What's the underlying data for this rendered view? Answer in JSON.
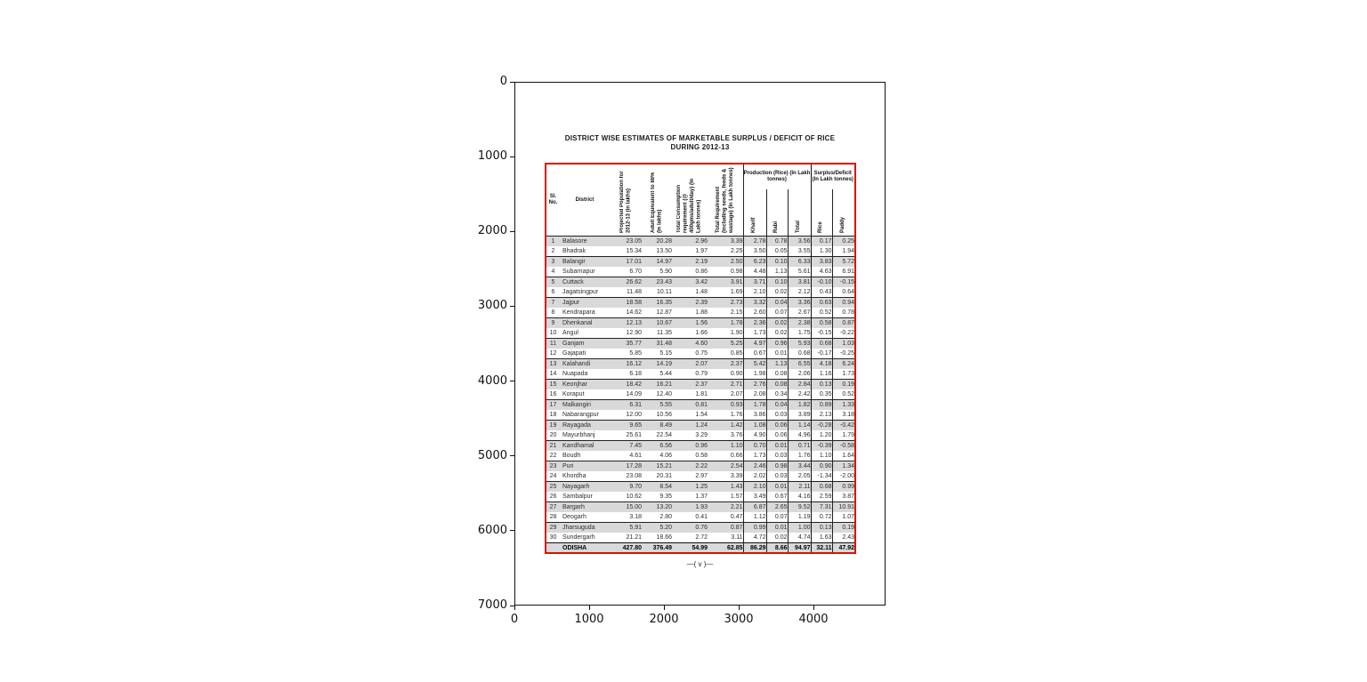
{
  "figure": {
    "y_ticks": [
      "0",
      "1000",
      "2000",
      "3000",
      "4000",
      "5000",
      "6000",
      "7000"
    ],
    "x_ticks": [
      "0",
      "1000",
      "2000",
      "3000",
      "4000"
    ]
  },
  "page": {
    "marker": "—( v )—",
    "table_border_color": "#dd1100",
    "row_shade_color": "#d9d9d9"
  },
  "chart_data": {
    "type": "table",
    "title": "DISTRICT WISE ESTIMATES OF MARKETABLE SURPLUS / DEFICIT OF RICE",
    "subtitle": "DURING 2012-13",
    "column_groups": {
      "production": "Production (Rice) (In Lakh tonnes)",
      "surplus": "Surplus/Deficit (In Lakh tonnes)"
    },
    "columns": [
      "Sl. No.",
      "District",
      "Projected Population for 2012-13 (in lakhs)",
      "Adult Equivalent to 88% (in lakhs)",
      "Total Consumption requirement (@ 400gms/adult/day) (In Lakh tonnes)",
      "Total Requirement (including seeds, feeds & wastage) (In Lakh tonnes)",
      "Kharif",
      "Rabi",
      "Total",
      "Rice",
      "Paddy"
    ],
    "rows": [
      [
        "1",
        "Balasore",
        "23.05",
        "20.28",
        "2.96",
        "3.39",
        "2.78",
        "0.78",
        "3.56",
        "0.17",
        "0.25"
      ],
      [
        "2",
        "Bhadrak",
        "15.34",
        "13.50",
        "1.97",
        "2.25",
        "3.50",
        "0.05",
        "3.55",
        "1.30",
        "1.94"
      ],
      [
        "3",
        "Balangir",
        "17.01",
        "14.97",
        "2.19",
        "2.50",
        "6.23",
        "0.10",
        "6.33",
        "3.83",
        "5.72"
      ],
      [
        "4",
        "Subarnapur",
        "6.70",
        "5.90",
        "0.86",
        "0.98",
        "4.48",
        "1.13",
        "5.61",
        "4.63",
        "6.91"
      ],
      [
        "5",
        "Cuttack",
        "26.62",
        "23.43",
        "3.42",
        "3.91",
        "3.71",
        "0.10",
        "3.81",
        "-0.10",
        "-0.15"
      ],
      [
        "6",
        "Jagatsingpur",
        "11.48",
        "10.11",
        "1.48",
        "1.69",
        "2.10",
        "0.02",
        "2.12",
        "0.43",
        "0.64"
      ],
      [
        "7",
        "Jajpur",
        "18.58",
        "16.35",
        "2.39",
        "2.73",
        "3.32",
        "0.04",
        "3.36",
        "0.63",
        "0.94"
      ],
      [
        "8",
        "Kendrapara",
        "14.62",
        "12.87",
        "1.88",
        "2.15",
        "2.60",
        "0.07",
        "2.67",
        "0.52",
        "0.78"
      ],
      [
        "9",
        "Dhenkanal",
        "12.13",
        "10.67",
        "1.56",
        "1.78",
        "2.36",
        "0.02",
        "2.38",
        "0.58",
        "0.87"
      ],
      [
        "10",
        "Angul",
        "12.90",
        "11.35",
        "1.66",
        "1.90",
        "1.73",
        "0.02",
        "1.75",
        "-0.15",
        "-0.22"
      ],
      [
        "11",
        "Ganjam",
        "35.77",
        "31.48",
        "4.60",
        "5.25",
        "4.97",
        "0.96",
        "5.93",
        "0.68",
        "1.03"
      ],
      [
        "12",
        "Gajapati",
        "5.85",
        "5.15",
        "0.75",
        "0.85",
        "0.67",
        "0.01",
        "0.68",
        "-0.17",
        "-0.25"
      ],
      [
        "13",
        "Kalahandi",
        "16.12",
        "14.19",
        "2.07",
        "2.37",
        "5.42",
        "1.13",
        "6.55",
        "4.18",
        "6.24"
      ],
      [
        "14",
        "Nuapada",
        "6.18",
        "5.44",
        "0.79",
        "0.90",
        "1.98",
        "0.08",
        "2.06",
        "1.16",
        "1.73"
      ],
      [
        "15",
        "Keonjhar",
        "18.42",
        "16.21",
        "2.37",
        "2.71",
        "2.76",
        "0.08",
        "2.84",
        "0.13",
        "0.19"
      ],
      [
        "16",
        "Koraput",
        "14.09",
        "12.40",
        "1.81",
        "2.07",
        "2.08",
        "0.34",
        "2.42",
        "0.35",
        "0.52"
      ],
      [
        "17",
        "Malkangiri",
        "6.31",
        "5.55",
        "0.81",
        "0.93",
        "1.78",
        "0.04",
        "1.82",
        "0.89",
        "1.33"
      ],
      [
        "18",
        "Nabarangpur",
        "12.00",
        "10.56",
        "1.54",
        "1.76",
        "3.86",
        "0.03",
        "3.89",
        "2.13",
        "3.18"
      ],
      [
        "19",
        "Rayagada",
        "9.65",
        "8.49",
        "1.24",
        "1.42",
        "1.08",
        "0.06",
        "1.14",
        "-0.28",
        "-0.42"
      ],
      [
        "20",
        "Mayurbhanj",
        "25.61",
        "22.54",
        "3.29",
        "3.76",
        "4.90",
        "0.06",
        "4.96",
        "1.20",
        "1.79"
      ],
      [
        "21",
        "Kandhamal",
        "7.45",
        "6.56",
        "0.96",
        "1.10",
        "0.70",
        "0.01",
        "0.71",
        "-0.39",
        "-0.58"
      ],
      [
        "22",
        "Boudh",
        "4.61",
        "4.06",
        "0.58",
        "0.66",
        "1.73",
        "0.03",
        "1.76",
        "1.10",
        "1.64"
      ],
      [
        "23",
        "Puri",
        "17.28",
        "15.21",
        "2.22",
        "2.54",
        "2.46",
        "0.98",
        "3.44",
        "0.90",
        "1.34"
      ],
      [
        "24",
        "Khordha",
        "23.08",
        "20.31",
        "2.97",
        "3.39",
        "2.02",
        "0.03",
        "2.05",
        "-1.34",
        "-2.00"
      ],
      [
        "25",
        "Nayagarh",
        "9.70",
        "8.54",
        "1.25",
        "1.43",
        "2.10",
        "0.01",
        "2.11",
        "0.68",
        "0.99"
      ],
      [
        "26",
        "Sambalpur",
        "10.62",
        "9.35",
        "1.37",
        "1.57",
        "3.49",
        "0.67",
        "4.16",
        "2.59",
        "3.87"
      ],
      [
        "27",
        "Bargarh",
        "15.00",
        "13.20",
        "1.93",
        "2.21",
        "6.87",
        "2.65",
        "9.52",
        "7.31",
        "10.91"
      ],
      [
        "28",
        "Deogarh",
        "3.18",
        "2.80",
        "0.41",
        "0.47",
        "1.12",
        "0.07",
        "1.19",
        "0.72",
        "1.07"
      ],
      [
        "29",
        "Jharsuguda",
        "5.91",
        "5.20",
        "0.76",
        "0.87",
        "0.99",
        "0.01",
        "1.00",
        "0.13",
        "0.19"
      ],
      [
        "30",
        "Sundergarh",
        "21.21",
        "18.66",
        "2.72",
        "3.11",
        "4.72",
        "0.02",
        "4.74",
        "1.63",
        "2.43"
      ],
      [
        "",
        "ODISHA",
        "427.80",
        "376.49",
        "54.99",
        "62.85",
        "86.29",
        "8.66",
        "94.97",
        "32.11",
        "47.92"
      ]
    ]
  }
}
